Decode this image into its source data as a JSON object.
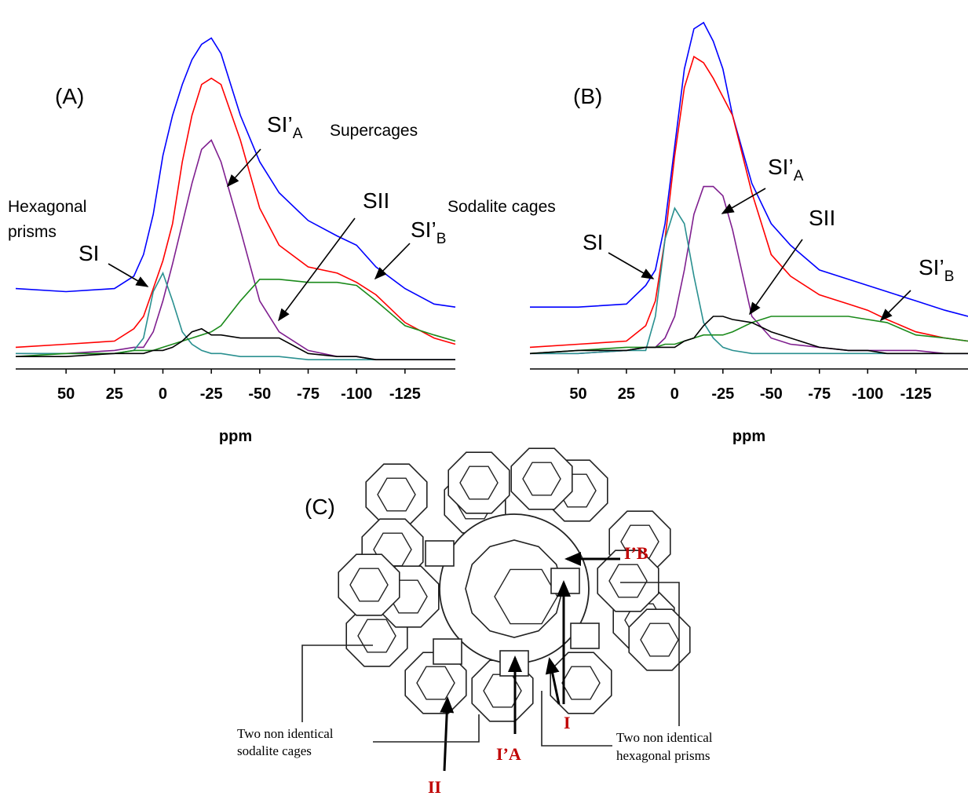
{
  "chart_data": [
    {
      "type": "line",
      "panel": "(A)",
      "x_label": "ppm",
      "x": [
        76,
        50,
        25,
        15,
        10,
        5,
        0,
        -5,
        -10,
        -15,
        -20,
        -25,
        -30,
        -40,
        -50,
        -60,
        -75,
        -90,
        -100,
        -110,
        -125,
        -140,
        -151
      ],
      "xlim": [
        76,
        -151
      ],
      "ylim": [
        0,
        115
      ],
      "xticks": [
        50,
        25,
        0,
        -25,
        -50,
        -75,
        -100,
        -125
      ],
      "series": [
        {
          "color": "#0000ff",
          "values": [
            26,
            25,
            26,
            30,
            37,
            50,
            69,
            82,
            92,
            100,
            105,
            107,
            102,
            82,
            67,
            57,
            48,
            43,
            40,
            33,
            26,
            21,
            20
          ]
        },
        {
          "color": "#ff0000",
          "values": [
            7,
            8,
            9,
            13,
            17,
            26,
            35,
            47,
            67,
            82,
            92,
            94,
            92,
            74,
            52,
            40,
            33,
            31,
            28,
            24,
            15,
            10,
            8
          ]
        },
        {
          "color": "#7f1f8f",
          "values": [
            5,
            5,
            6,
            7,
            7,
            12,
            22,
            34,
            47,
            60,
            71,
            74,
            67,
            45,
            22,
            12,
            6,
            4,
            4,
            3,
            3,
            3,
            3
          ]
        },
        {
          "color": "#2a9090",
          "values": [
            5,
            5,
            5,
            6,
            10,
            25,
            31,
            22,
            12,
            8,
            6,
            5,
            5,
            4,
            4,
            4,
            3,
            3,
            3,
            3,
            3,
            3,
            3
          ]
        },
        {
          "color": "#1a8a1a",
          "values": [
            4,
            5,
            5,
            6,
            6,
            6,
            7,
            8,
            9,
            10,
            11,
            12,
            14,
            22,
            29,
            29,
            28,
            28,
            27,
            22,
            14,
            11,
            9
          ]
        },
        {
          "color": "#000000",
          "values": [
            4,
            4,
            5,
            5,
            5,
            6,
            6,
            7,
            9,
            12,
            13,
            11,
            11,
            10,
            10,
            10,
            5,
            4,
            4,
            3,
            3,
            3,
            3
          ]
        }
      ],
      "annotations": [
        {
          "text": "SI’",
          "sub": "A"
        },
        {
          "text": "Supercages"
        },
        {
          "text": "Hexagonal"
        },
        {
          "text": "prisms"
        },
        {
          "text": "SI"
        },
        {
          "text": "SII"
        },
        {
          "text": "Sodalite cages"
        },
        {
          "text": "SI’",
          "sub": "B"
        }
      ]
    },
    {
      "type": "line",
      "panel": "(B)",
      "x_label": "ppm",
      "x": [
        75,
        50,
        25,
        15,
        10,
        5,
        0,
        -5,
        -10,
        -15,
        -20,
        -25,
        -30,
        -40,
        -50,
        -60,
        -75,
        -90,
        -100,
        -110,
        -125,
        -140,
        -152
      ],
      "xlim": [
        75,
        -152
      ],
      "ylim": [
        0,
        115
      ],
      "xticks": [
        50,
        25,
        0,
        -25,
        -50,
        -75,
        -100,
        -125
      ],
      "series": [
        {
          "color": "#0000ff",
          "values": [
            20,
            20,
            21,
            27,
            32,
            47,
            72,
            97,
            110,
            112,
            106,
            97,
            82,
            60,
            47,
            40,
            32,
            29,
            27,
            25,
            22,
            19,
            17
          ]
        },
        {
          "color": "#ff0000",
          "values": [
            7,
            8,
            9,
            14,
            22,
            42,
            69,
            91,
            101,
            99,
            94,
            88,
            82,
            57,
            37,
            30,
            24,
            21,
            19,
            16,
            12,
            10,
            9
          ]
        },
        {
          "color": "#7f1f8f",
          "values": [
            5,
            5,
            6,
            7,
            7,
            10,
            17,
            32,
            50,
            59,
            59,
            56,
            45,
            17,
            10,
            8,
            7,
            6,
            6,
            6,
            6,
            5,
            5
          ]
        },
        {
          "color": "#2a9090",
          "values": [
            5,
            5,
            6,
            6,
            17,
            42,
            52,
            47,
            30,
            15,
            10,
            7,
            6,
            5,
            5,
            5,
            5,
            5,
            5,
            5,
            5,
            5,
            5
          ]
        },
        {
          "color": "#1a8a1a",
          "values": [
            5,
            6,
            7,
            7,
            7,
            8,
            8,
            9,
            10,
            11,
            11,
            11,
            12,
            15,
            17,
            17,
            17,
            17,
            16,
            15,
            11,
            10,
            9
          ]
        },
        {
          "color": "#000000",
          "values": [
            5,
            6,
            6,
            7,
            7,
            7,
            7,
            9,
            10,
            14,
            17,
            17,
            16,
            15,
            12,
            10,
            7,
            6,
            6,
            5,
            5,
            5,
            5
          ]
        }
      ],
      "annotations": [
        {
          "text": "SI’",
          "sub": "A"
        },
        {
          "text": "SI"
        },
        {
          "text": "SII"
        },
        {
          "text": "SI’",
          "sub": "B"
        }
      ]
    }
  ],
  "panel_c": {
    "panel": "(C)",
    "labels": [
      "I’B",
      "I’A",
      "I",
      "II"
    ],
    "captions": [
      "Two non identical",
      "sodalite cages",
      "Two non identical",
      "hexagonal prisms"
    ]
  }
}
